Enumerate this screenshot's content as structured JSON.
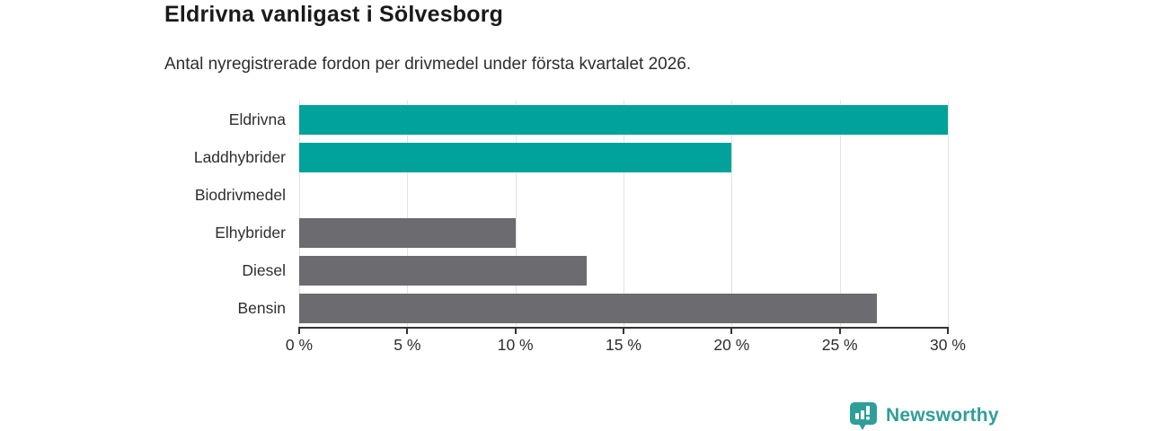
{
  "header": {
    "title": "Eldrivna vanligast i Sölvesborg",
    "subtitle": "Antal nyregistrerade fordon per drivmedel under första kvartalet 2026."
  },
  "chart_data": {
    "type": "bar",
    "orientation": "horizontal",
    "title": "Eldrivna vanligast i Sölvesborg",
    "subtitle": "Antal nyregistrerade fordon per drivmedel under första kvartalet 2026.",
    "categories": [
      "Eldrivna",
      "Laddhybrider",
      "Biodrivmedel",
      "Elhybrider",
      "Diesel",
      "Bensin"
    ],
    "values": [
      30,
      20,
      0,
      10,
      13.3,
      26.7
    ],
    "unit": "%",
    "xlim": [
      0,
      30
    ],
    "x_ticks": [
      0,
      5,
      10,
      15,
      20,
      25,
      30
    ],
    "x_tick_labels": [
      "0 %",
      "5 %",
      "10 %",
      "15 %",
      "20 %",
      "25 %",
      "30 %"
    ],
    "grid": true,
    "legend": false,
    "bar_colors": [
      "#00a29b",
      "#00a29b",
      "#6b6b70",
      "#6b6b70",
      "#6b6b70",
      "#6b6b70"
    ],
    "highlight_color": "#00a29b",
    "default_color": "#6b6b70"
  },
  "colors": {
    "gridline": "#e2e2e2",
    "axis": "#333333",
    "title": "#1a1a1a",
    "text": "#2e2e2e",
    "logo_teal": "#2f9e98"
  },
  "footer": {
    "brand": "Newsworthy"
  }
}
